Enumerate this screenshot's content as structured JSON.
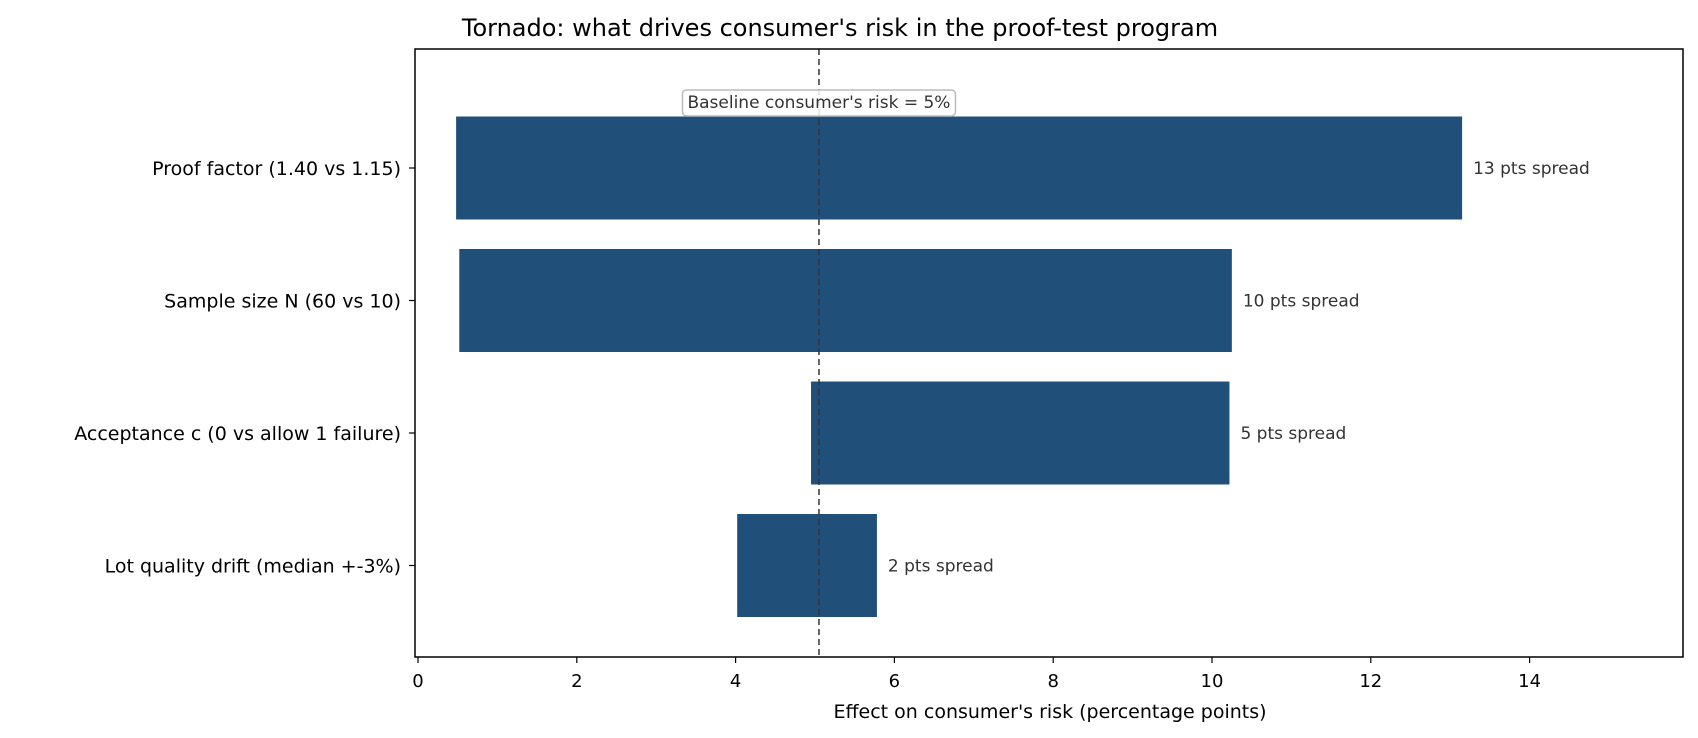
{
  "chart_data": {
    "type": "bar",
    "orientation": "horizontal",
    "variant": "tornado",
    "title": "Tornado: what drives consumer's risk in the proof-test program",
    "xlabel": "Effect on consumer's risk  (percentage points)",
    "ylabel": "",
    "xlim": [
      0,
      16
    ],
    "xticks": [
      0,
      2,
      4,
      6,
      8,
      10,
      12,
      14
    ],
    "grid": false,
    "bar_color": "#20507a",
    "baseline": {
      "value": 5.05,
      "label": "Baseline consumer's risk = 5%"
    },
    "categories": [
      "Proof factor (1.40 vs 1.15)",
      "Sample size N (60 vs 10)",
      "Acceptance c (0 vs allow 1 failure)",
      "Lot quality drift (median +-3%)"
    ],
    "low": [
      0.48,
      0.52,
      4.95,
      4.02
    ],
    "high": [
      13.15,
      10.25,
      10.22,
      5.78
    ],
    "bar_labels": [
      "13 pts spread",
      "10 pts spread",
      "5 pts spread",
      "2 pts spread"
    ]
  }
}
